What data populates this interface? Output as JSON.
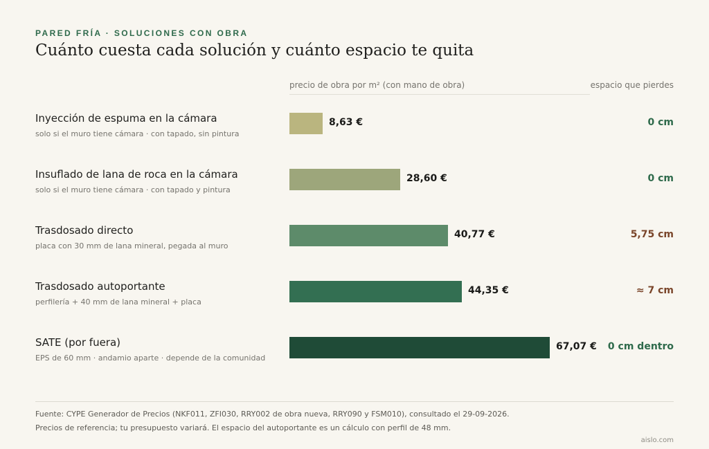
{
  "header": {
    "kicker": "PARED FRÍA · SOLUCIONES CON OBRA",
    "title": "Cuánto cuesta cada solución y cuánto espacio te quita"
  },
  "columns": {
    "price": "precio de obra por m² (con mano de obra)",
    "space": "espacio que pierdes"
  },
  "chart_data": {
    "type": "bar",
    "orientation": "horizontal",
    "xlim": [
      0,
      67.07
    ],
    "categories": [
      "Inyección de espuma en la cámara",
      "Insuflado de lana de roca en la cámara",
      "Trasdosado directo",
      "Trasdosado autoportante",
      "SATE (por fuera)"
    ],
    "values": [
      8.63,
      28.6,
      40.77,
      44.35,
      67.07
    ],
    "rows": [
      {
        "name": "Inyección de espuma en la cámara",
        "note": "solo si el muro tiene cámara · con tapado, sin pintura",
        "value": 8.63,
        "value_label": "8,63 €",
        "space_label": "0 cm",
        "color": "#bab57f",
        "space_color": "#2e6a4b"
      },
      {
        "name": "Insuflado de lana de roca en la cámara",
        "note": "solo si el muro tiene cámara · con tapado y pintura",
        "value": 28.6,
        "value_label": "28,60 €",
        "space_label": "0 cm",
        "color": "#9da67b",
        "space_color": "#2e6a4b"
      },
      {
        "name": "Trasdosado directo",
        "note": "placa con 30 mm de lana mineral, pegada al muro",
        "value": 40.77,
        "value_label": "40,77 €",
        "space_label": "5,75 cm",
        "color": "#5d8b6a",
        "space_color": "#7a452a"
      },
      {
        "name": "Trasdosado autoportante",
        "note": "perfilería + 40 mm de lana mineral + placa",
        "value": 44.35,
        "value_label": "44,35 €",
        "space_label": "≈ 7 cm",
        "color": "#336f52",
        "space_color": "#7a452a"
      },
      {
        "name": "SATE (por fuera)",
        "note": "EPS de 60 mm · andamio aparte · depende de la comunidad",
        "value": 67.07,
        "value_label": "67,07 €",
        "space_label": "0 cm dentro",
        "color": "#1f4b37",
        "space_color": "#2e6a4b"
      }
    ]
  },
  "footer": {
    "source": "Fuente: CYPE Generador de Precios (NKF011, ZFI030, RRY002 de obra nueva, RRY090 y FSM010), consultado el 29-09-2026.",
    "note": "Precios de referencia; tu presupuesto variará. El espacio del autoportante es un cálculo con perfil de 48 mm.",
    "brand": "aislo.com"
  }
}
